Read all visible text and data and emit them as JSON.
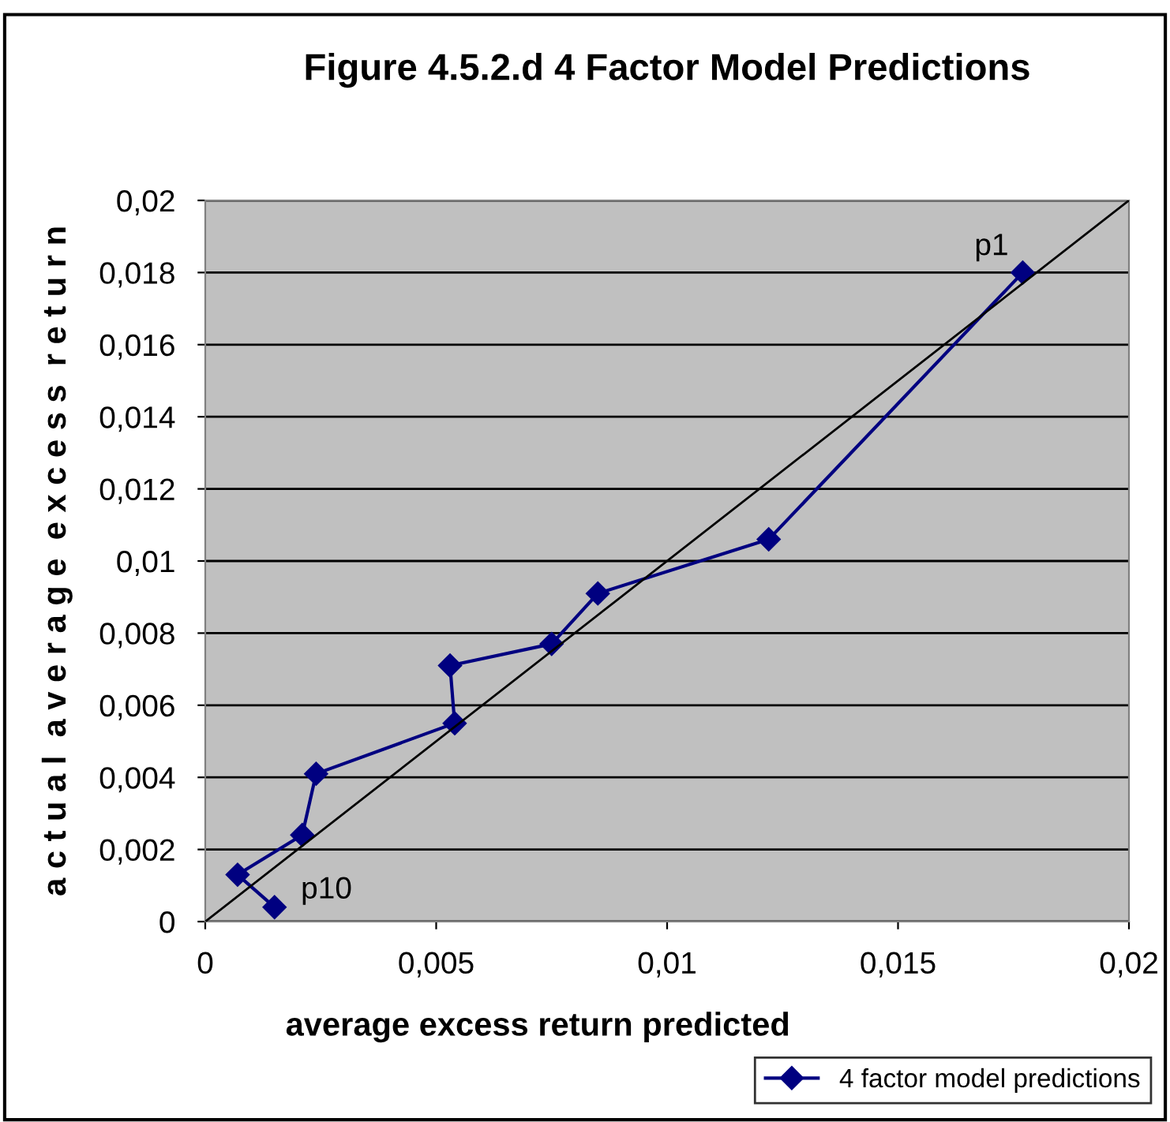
{
  "chart_data": {
    "type": "line",
    "title": "Figure 4.5.2.d 4 Factor Model Predictions",
    "xlabel": "average excess return predicted",
    "ylabel": "a c t u a l  a v e r a g e  e x c e s s  r e t u r n",
    "series": [
      {
        "name": "4 factor model predictions",
        "color": "#000080",
        "marker": "diamond",
        "x": [
          0.0177,
          0.0122,
          0.0085,
          0.0075,
          0.0053,
          0.0054,
          0.0024,
          0.0021,
          0.0007,
          0.0015
        ],
        "values": [
          0.018,
          0.0106,
          0.0091,
          0.0077,
          0.0071,
          0.0055,
          0.0041,
          0.0024,
          0.0013,
          0.0004
        ]
      },
      {
        "color": "#000000",
        "marker": "none",
        "x": [
          0,
          0.02
        ],
        "values": [
          0,
          0.02
        ]
      }
    ],
    "annotations": [
      {
        "text": "p1",
        "x": 0.0177,
        "y": 0.018
      },
      {
        "text": "p10",
        "x": 0.0015,
        "y": 0.0004
      }
    ],
    "xlim": [
      0,
      0.02
    ],
    "ylim": [
      0,
      0.02
    ],
    "xticks": [
      {
        "value": 0,
        "label": "0"
      },
      {
        "value": 0.005,
        "label": "0,005"
      },
      {
        "value": 0.01,
        "label": "0,01"
      },
      {
        "value": 0.015,
        "label": "0,015"
      },
      {
        "value": 0.02,
        "label": "0,02"
      }
    ],
    "yticks": [
      {
        "value": 0,
        "label": "0"
      },
      {
        "value": 0.002,
        "label": "0,002"
      },
      {
        "value": 0.004,
        "label": "0,004"
      },
      {
        "value": 0.006,
        "label": "0,006"
      },
      {
        "value": 0.008,
        "label": "0,008"
      },
      {
        "value": 0.01,
        "label": "0,01"
      },
      {
        "value": 0.012,
        "label": "0,012"
      },
      {
        "value": 0.014,
        "label": "0,014"
      },
      {
        "value": 0.016,
        "label": "0,016"
      },
      {
        "value": 0.018,
        "label": "0,018"
      },
      {
        "value": 0.02,
        "label": "0,02"
      }
    ],
    "grid": "y",
    "legend": "bottom right"
  }
}
